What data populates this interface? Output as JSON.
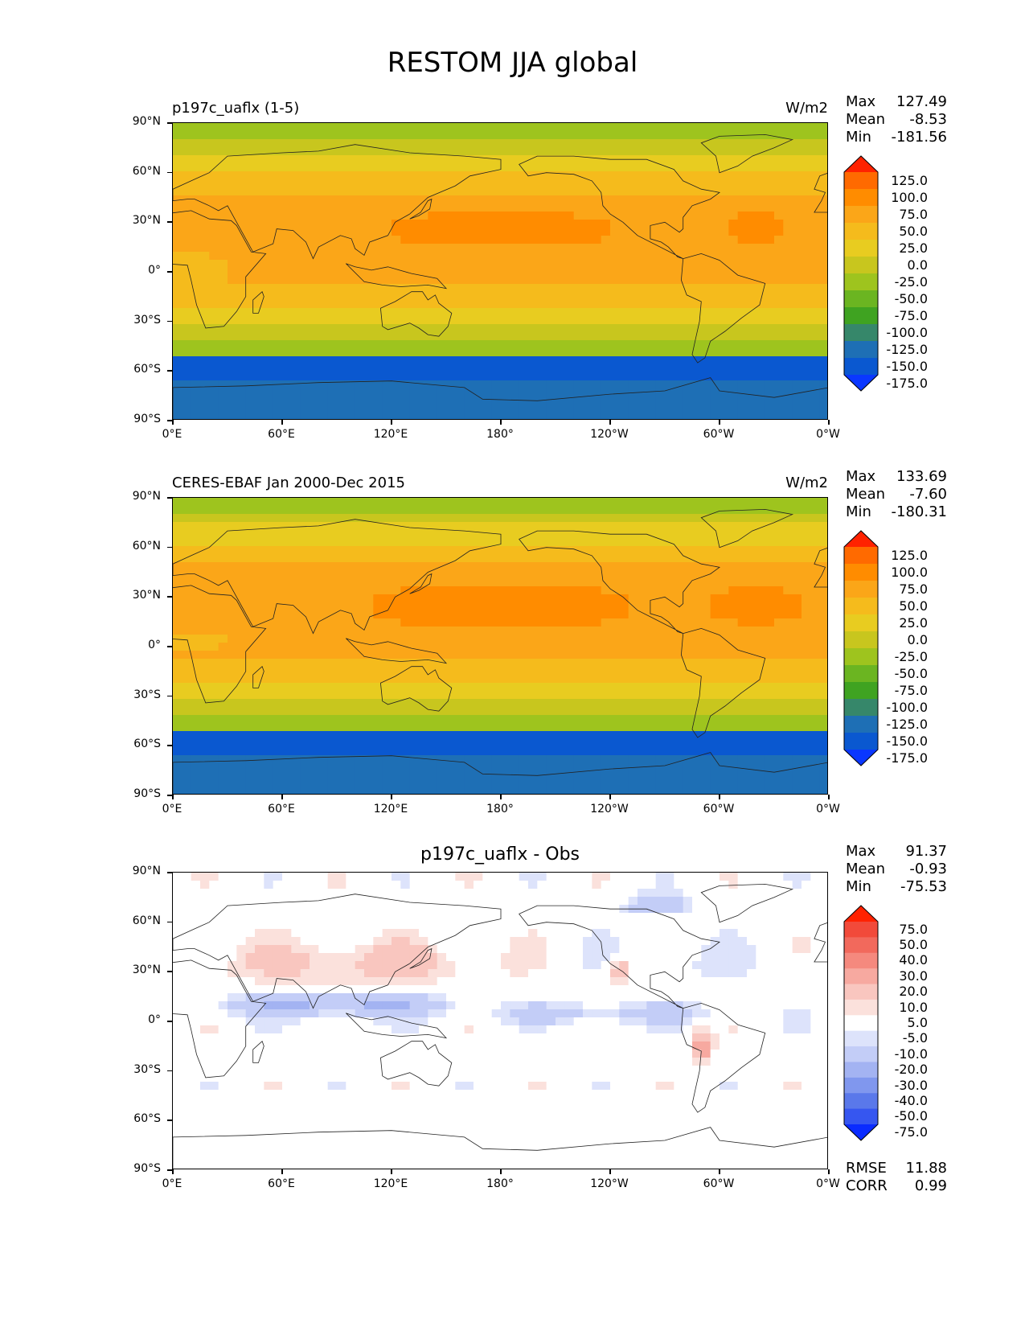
{
  "figure_title": "RESTOM JJA global",
  "chart_data": [
    {
      "type": "heatmap",
      "title": "p197c_uaflx (1-5)",
      "units": "W/m2",
      "stats": {
        "max_label": "Max",
        "max": "127.49",
        "mean_label": "Mean",
        "mean": "-8.53",
        "min_label": "Min",
        "min": "-181.56"
      },
      "x_ticks": [
        "0°E",
        "60°E",
        "120°E",
        "180°",
        "120°W",
        "60°W",
        "0°W"
      ],
      "y_ticks": [
        "90°N",
        "60°N",
        "30°N",
        "0°",
        "30°S",
        "60°S",
        "90°S"
      ],
      "colorbar_levels": [
        "125.0",
        "100.0",
        "75.0",
        "50.0",
        "25.0",
        "0.0",
        "-25.0",
        "-50.0",
        "-75.0",
        "-100.0",
        "-125.0",
        "-150.0",
        "-175.0"
      ],
      "colorbar_colors": [
        "#ff2200",
        "#ff6a00",
        "#ff8c00",
        "#fba618",
        "#f5bb1c",
        "#e8cc20",
        "#c8c61e",
        "#9ec41e",
        "#6bb521",
        "#3fa321",
        "#36876a",
        "#1e6fb5",
        "#0a58d0",
        "#0a37ff"
      ]
    },
    {
      "type": "heatmap",
      "title": "CERES-EBAF Jan 2000-Dec 2015",
      "units": "W/m2",
      "stats": {
        "max_label": "Max",
        "max": "133.69",
        "mean_label": "Mean",
        "mean": "-7.60",
        "min_label": "Min",
        "min": "-180.31"
      },
      "x_ticks": [
        "0°E",
        "60°E",
        "120°E",
        "180°",
        "120°W",
        "60°W",
        "0°W"
      ],
      "y_ticks": [
        "90°N",
        "60°N",
        "30°N",
        "0°",
        "30°S",
        "60°S",
        "90°S"
      ],
      "colorbar_levels": [
        "125.0",
        "100.0",
        "75.0",
        "50.0",
        "25.0",
        "0.0",
        "-25.0",
        "-50.0",
        "-75.0",
        "-100.0",
        "-125.0",
        "-150.0",
        "-175.0"
      ],
      "colorbar_colors": [
        "#ff2200",
        "#ff6a00",
        "#ff8c00",
        "#fba618",
        "#f5bb1c",
        "#e8cc20",
        "#c8c61e",
        "#9ec41e",
        "#6bb521",
        "#3fa321",
        "#36876a",
        "#1e6fb5",
        "#0a58d0",
        "#0a37ff"
      ]
    },
    {
      "type": "heatmap",
      "title": "p197c_uaflx - Obs",
      "units": "",
      "stats": {
        "max_label": "Max",
        "max": "91.37",
        "mean_label": "Mean",
        "mean": "-0.93",
        "min_label": "Min",
        "min": "-75.53"
      },
      "extra_stats": {
        "rmse_label": "RMSE",
        "rmse": "11.88",
        "corr_label": "CORR",
        "corr": "0.99"
      },
      "x_ticks": [
        "0°E",
        "60°E",
        "120°E",
        "180°",
        "120°W",
        "60°W",
        "0°W"
      ],
      "y_ticks": [
        "90°N",
        "60°N",
        "30°N",
        "0°",
        "30°S",
        "60°S",
        "90°S"
      ],
      "colorbar_levels": [
        "75.0",
        "50.0",
        "40.0",
        "30.0",
        "20.0",
        "10.0",
        "5.0",
        "-5.0",
        "-10.0",
        "-20.0",
        "-30.0",
        "-40.0",
        "-50.0",
        "-75.0"
      ],
      "colorbar_colors": [
        "#ff2200",
        "#f24a3a",
        "#f2695c",
        "#f5897e",
        "#f7a9a0",
        "#f9c6bf",
        "#fbe1dc",
        "#ffffff",
        "#dde3fb",
        "#c3cdf7",
        "#a3b3f2",
        "#8097ee",
        "#5a78ea",
        "#3656f0",
        "#0a2bff"
      ]
    }
  ]
}
